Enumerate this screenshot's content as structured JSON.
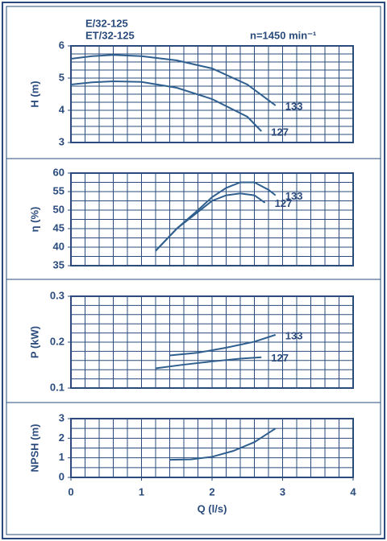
{
  "chart_data": [
    {
      "type": "line",
      "title": "E/32-125",
      "subtitle": "ET/32-125",
      "annotation": "n=1450 min⁻¹",
      "ylabel": "H (m)",
      "xlim": [
        0,
        4
      ],
      "ylim": [
        3,
        6
      ],
      "yticks": [
        3,
        4,
        5,
        6
      ],
      "x_grid_step": 0.2,
      "y_grid_step": 0.25,
      "series": [
        {
          "name": "133",
          "color": "#2f5f8f",
          "x": [
            0,
            0.3,
            0.6,
            1,
            1.5,
            2,
            2.5,
            2.9
          ],
          "values": [
            5.6,
            5.68,
            5.72,
            5.68,
            5.55,
            5.3,
            4.8,
            4.15
          ]
        },
        {
          "name": "127",
          "color": "#2f5f8f",
          "x": [
            0,
            0.3,
            0.6,
            1,
            1.5,
            2,
            2.5,
            2.7
          ],
          "values": [
            4.8,
            4.87,
            4.9,
            4.88,
            4.7,
            4.35,
            3.8,
            3.35
          ]
        }
      ]
    },
    {
      "type": "line",
      "ylabel": "η (%)",
      "xlim": [
        0,
        4
      ],
      "ylim": [
        35,
        60
      ],
      "yticks": [
        35,
        40,
        45,
        50,
        55,
        60
      ],
      "x_grid_step": 0.2,
      "y_grid_step": 2.5,
      "series": [
        {
          "name": "133",
          "color": "#2f5f8f",
          "x": [
            1.2,
            1.5,
            1.8,
            2.0,
            2.2,
            2.4,
            2.6,
            2.8,
            2.9
          ],
          "values": [
            39,
            45,
            50,
            53.5,
            56,
            57.5,
            57.5,
            55.5,
            54
          ]
        },
        {
          "name": "127",
          "color": "#2f5f8f",
          "x": [
            1.2,
            1.5,
            1.8,
            2.0,
            2.2,
            2.4,
            2.6,
            2.75
          ],
          "values": [
            39,
            45,
            49.5,
            52.5,
            54,
            54.5,
            54,
            52
          ]
        }
      ]
    },
    {
      "type": "line",
      "ylabel": "P (kW)",
      "xlim": [
        0,
        4
      ],
      "ylim": [
        0.1,
        0.3
      ],
      "yticks": [
        0.1,
        0.2,
        0.3
      ],
      "x_grid_step": 0.2,
      "y_grid_step": 0.02,
      "series": [
        {
          "name": "133",
          "color": "#2f5f8f",
          "x": [
            1.4,
            1.8,
            2.2,
            2.6,
            2.9
          ],
          "values": [
            0.171,
            0.177,
            0.188,
            0.201,
            0.216
          ]
        },
        {
          "name": "127",
          "color": "#2f5f8f",
          "x": [
            1.2,
            1.6,
            2.0,
            2.4,
            2.7
          ],
          "values": [
            0.143,
            0.151,
            0.158,
            0.164,
            0.167
          ]
        }
      ]
    },
    {
      "type": "line",
      "ylabel": "NPSH (m)",
      "xlabel": "Q (l/s)",
      "xlim": [
        0,
        4
      ],
      "xticks": [
        0,
        1,
        2,
        3,
        4
      ],
      "ylim": [
        0,
        3
      ],
      "yticks": [
        0,
        1,
        2,
        3
      ],
      "x_grid_step": 0.2,
      "y_grid_step": 0.5,
      "series": [
        {
          "color": "#2f5f8f",
          "x": [
            1.4,
            1.7,
            2.0,
            2.3,
            2.6,
            2.9
          ],
          "values": [
            0.9,
            0.92,
            1.05,
            1.35,
            1.8,
            2.5
          ]
        }
      ]
    }
  ]
}
